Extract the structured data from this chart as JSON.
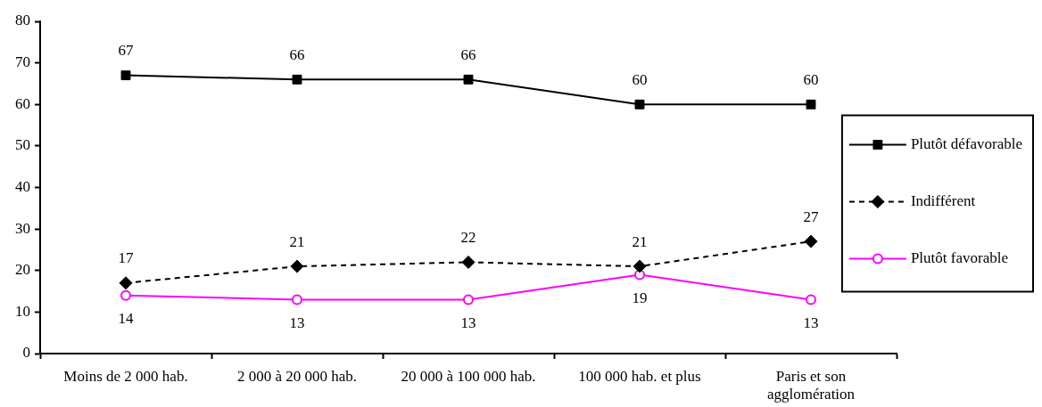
{
  "chart_data": {
    "type": "line",
    "categories": [
      "Moins de 2 000 hab.",
      "2 000 à 20 000 hab.",
      "20 000 à 100 000 hab.",
      "100 000 hab. et plus",
      "Paris et son agglomération"
    ],
    "series": [
      {
        "name": "Plutôt défavorable",
        "color": "#000000",
        "marker": "square",
        "values": [
          67,
          66,
          66,
          60,
          60
        ]
      },
      {
        "name": "Indifférent",
        "color": "#000000",
        "marker": "diamond",
        "line_style": "dashed",
        "values": [
          17,
          21,
          22,
          21,
          27
        ]
      },
      {
        "name": "Plutôt favorable",
        "color": "#ff00ff",
        "marker": "circle",
        "values": [
          14,
          13,
          13,
          19,
          13
        ]
      }
    ],
    "ylim": [
      0,
      80
    ],
    "yticks": [
      0,
      10,
      20,
      30,
      40,
      50,
      60,
      70,
      80
    ],
    "legend": "right",
    "data_labels": true
  }
}
